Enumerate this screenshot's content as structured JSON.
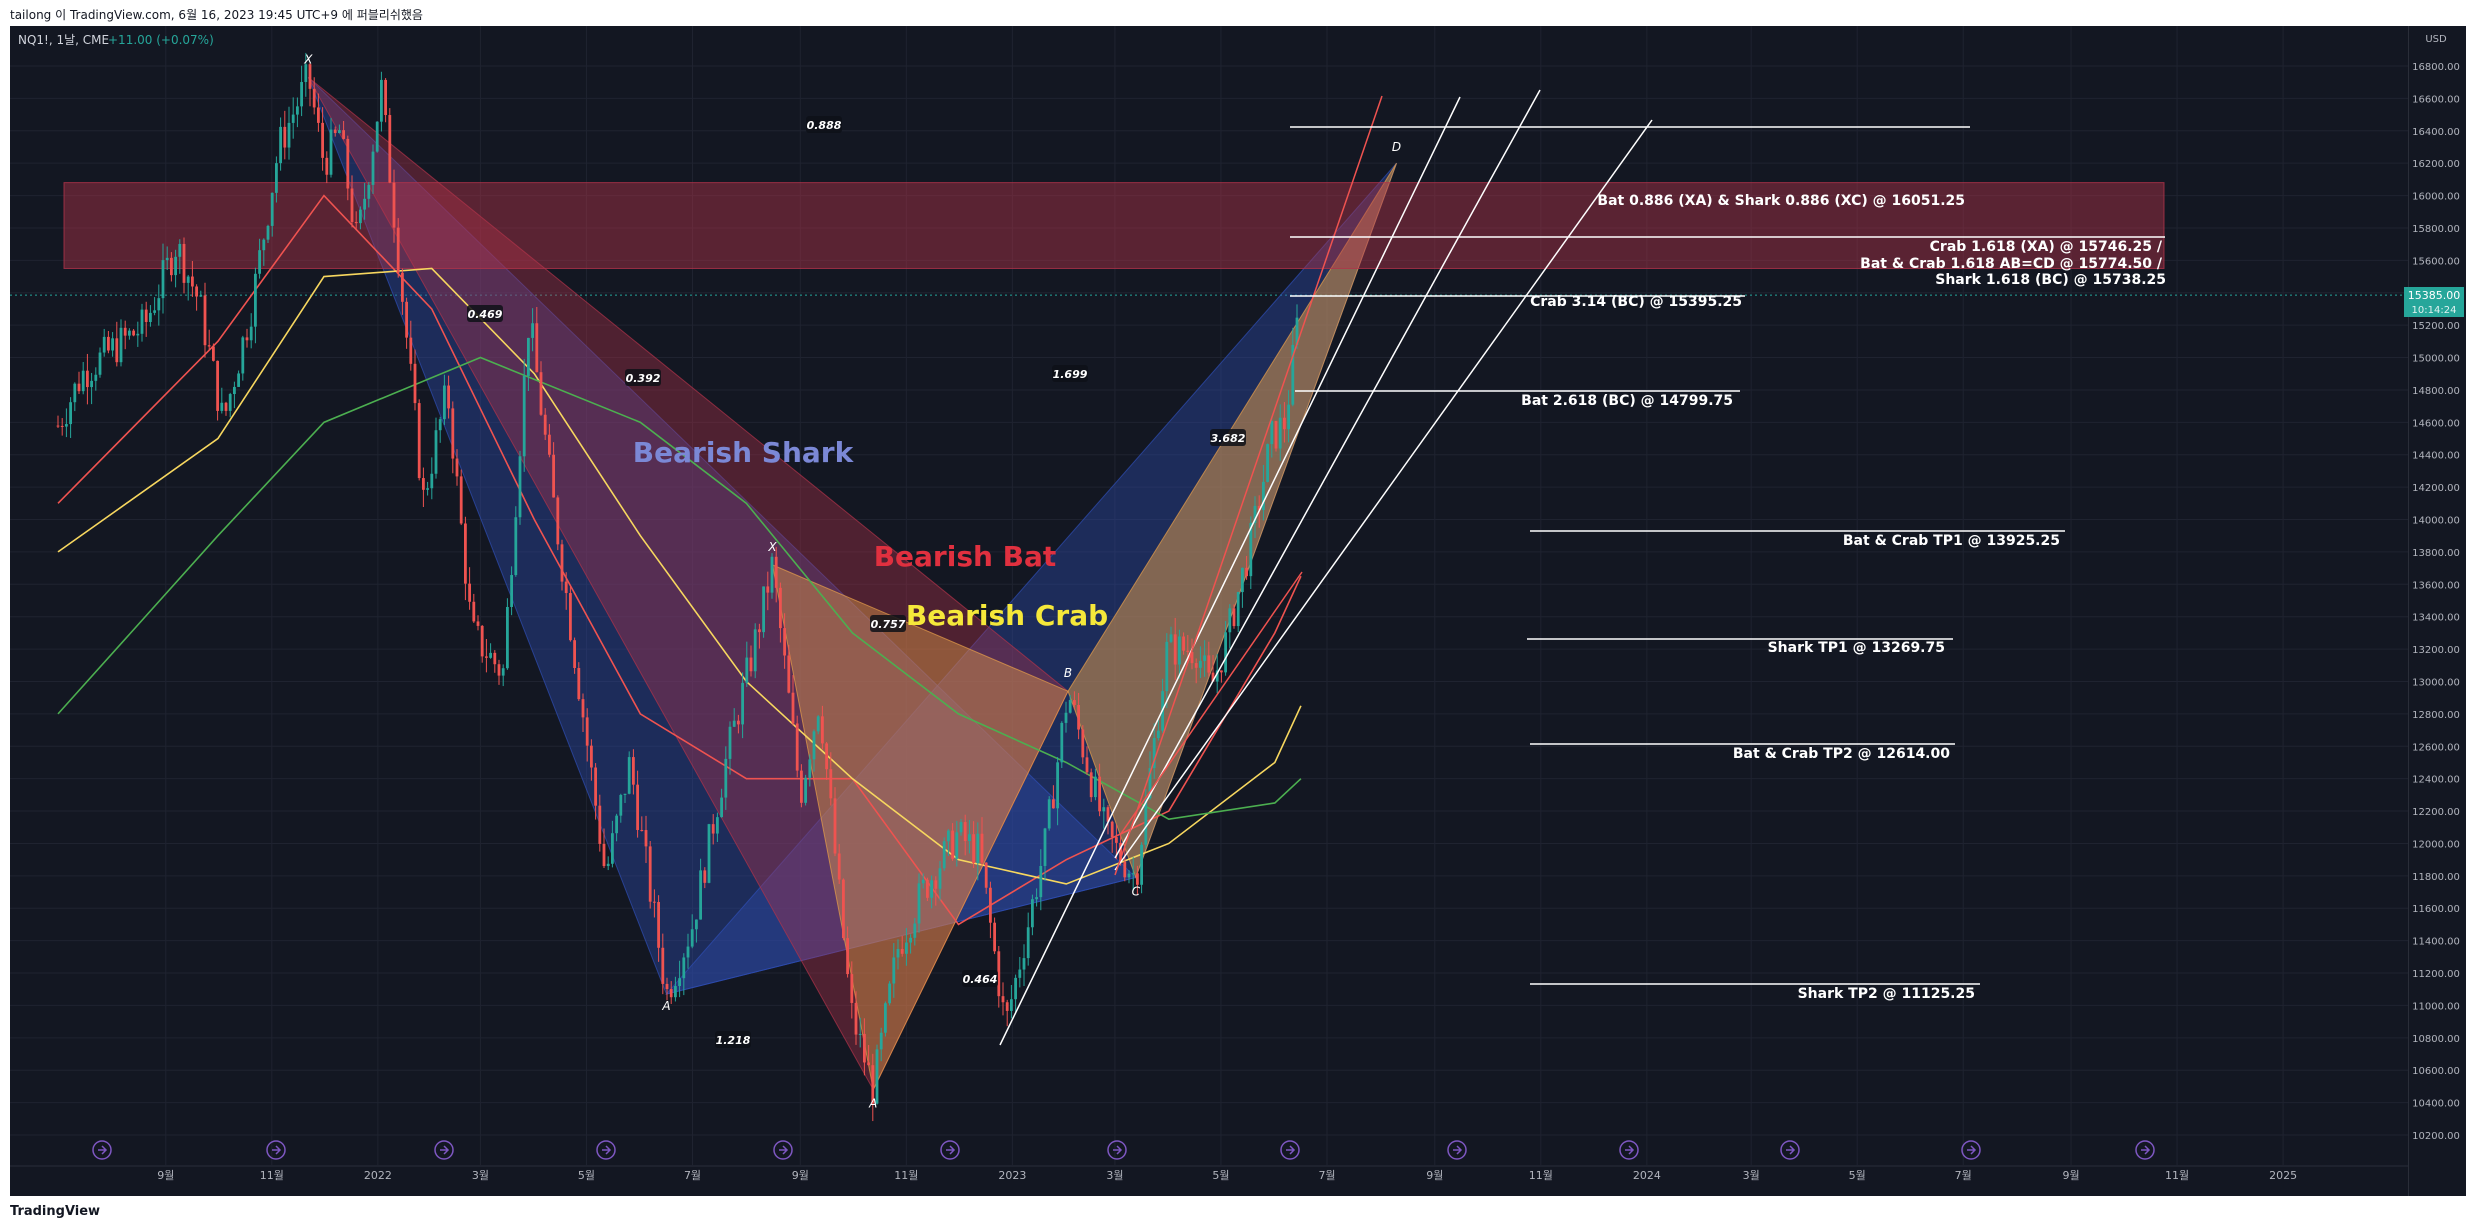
{
  "header": {
    "caption": "tailong 이 TradingView.com, 6월 16, 2023 19:45 UTC+9 에 퍼블리쉬했음"
  },
  "symbol": {
    "name": "NQ1!, 1날, CME",
    "change": "+11.00 (+0.07%)"
  },
  "price_axis": {
    "currency": "USD",
    "ticks": [
      "16800.00",
      "16600.00",
      "16400.00",
      "16200.00",
      "16000.00",
      "15800.00",
      "15600.00",
      "15400.00",
      "15200.00",
      "15000.00",
      "14800.00",
      "14600.00",
      "14400.00",
      "14200.00",
      "14000.00",
      "13800.00",
      "13600.00",
      "13400.00",
      "13200.00",
      "13000.00",
      "12800.00",
      "12600.00",
      "12400.00",
      "12200.00",
      "12000.00",
      "11800.00",
      "11600.00",
      "11400.00",
      "11200.00",
      "11000.00",
      "10800.00",
      "10600.00",
      "10400.00",
      "10200.00"
    ],
    "last_price": "15385.00",
    "countdown": "10:14:24"
  },
  "time_axis": {
    "ticks": [
      "9월",
      "11월",
      "2022",
      "3월",
      "5월",
      "7월",
      "9월",
      "11월",
      "2023",
      "3월",
      "5월",
      "7월",
      "9월",
      "11월",
      "2024",
      "3월",
      "5월",
      "7월",
      "9월",
      "11월",
      "2025"
    ]
  },
  "footer": {
    "logo": "TradingView"
  },
  "colors": {
    "shark": "#2f4fb5",
    "bat": "#b2334a",
    "crab": "#e8a04a",
    "up": "#26a69a",
    "down": "#ef5350"
  },
  "chart_data": {
    "type": "candlestick",
    "symbol": "NQ1!",
    "interval": "1날",
    "yrange": [
      10100,
      16950
    ],
    "pivots": [
      {
        "label": "X",
        "date": "2021-11-22",
        "price": 16730
      },
      {
        "label": "A",
        "date": "2022-06-16",
        "price": 11070
      },
      {
        "label": "X",
        "date": "2022-08-16",
        "price": 13720
      },
      {
        "label": "A",
        "date": "2022-10-13",
        "price": 10480
      },
      {
        "label": "B",
        "date": "2023-02-02",
        "price": 12940
      },
      {
        "label": "C",
        "date": "2023-03-13",
        "price": 11790
      },
      {
        "label": "D",
        "date": "2023-08-10",
        "price": 16200
      }
    ],
    "pattern_labels": [
      "Bearish Shark",
      "Bearish Bat",
      "Bearish Crab"
    ],
    "ratios": [
      "0.888",
      "0.469",
      "0.392",
      "1.699",
      "3.682",
      "0.757",
      "0.464",
      "1.218"
    ],
    "levels": [
      {
        "label": "Bat 0.886 (XA) & Shark 0.886 (XC) @ 16051.25",
        "price": 16051.25
      },
      {
        "label": "Crab 1.618 (XA) @ 15746.25 /",
        "price": 15746.25
      },
      {
        "label": "Bat & Crab 1.618 AB=CD @ 15774.50 /",
        "price": 15774.5
      },
      {
        "label": "Shark 1.618 (BC) @ 15738.25",
        "price": 15738.25
      },
      {
        "label": "Crab 3.14 (BC) @ 15395.25",
        "price": 15395.25
      },
      {
        "label": "Bat 2.618 (BC) @ 14799.75",
        "price": 14799.75
      },
      {
        "label": "Bat & Crab TP1 @ 13925.25",
        "price": 13925.25
      },
      {
        "label": "Shark TP1 @ 13269.75",
        "price": 13269.75
      },
      {
        "label": "Bat & Crab TP2 @ 12614.00",
        "price": 12614
      },
      {
        "label": "Shark TP2 @ 11125.25",
        "price": 11125.25
      }
    ],
    "prz_zone": [
      15550,
      16080
    ],
    "last_price": 15385,
    "price_path": [
      [
        "2021-07-01",
        14580
      ],
      [
        "2021-07-15",
        14900
      ],
      [
        "2021-08-01",
        15050
      ],
      [
        "2021-08-20",
        15200
      ],
      [
        "2021-09-07",
        15700
      ],
      [
        "2021-09-20",
        15350
      ],
      [
        "2021-10-04",
        14600
      ],
      [
        "2021-10-20",
        15300
      ],
      [
        "2021-11-05",
        16300
      ],
      [
        "2021-11-22",
        16730
      ],
      [
        "2021-12-01",
        16200
      ],
      [
        "2021-12-10",
        16400
      ],
      [
        "2021-12-20",
        15700
      ],
      [
        "2022-01-03",
        16660
      ],
      [
        "2022-01-14",
        15500
      ],
      [
        "2022-01-27",
        14120
      ],
      [
        "2022-02-10",
        14800
      ],
      [
        "2022-02-24",
        13300
      ],
      [
        "2022-03-14",
        13050
      ],
      [
        "2022-03-29",
        15260
      ],
      [
        "2022-04-12",
        14100
      ],
      [
        "2022-04-29",
        12800
      ],
      [
        "2022-05-12",
        11800
      ],
      [
        "2022-05-26",
        12500
      ],
      [
        "2022-06-16",
        11070
      ],
      [
        "2022-07-01",
        11500
      ],
      [
        "2022-07-20",
        12500
      ],
      [
        "2022-08-05",
        13200
      ],
      [
        "2022-08-16",
        13720
      ],
      [
        "2022-09-01",
        12300
      ],
      [
        "2022-09-12",
        12900
      ],
      [
        "2022-09-30",
        10970
      ],
      [
        "2022-10-13",
        10480
      ],
      [
        "2022-10-27",
        11350
      ],
      [
        "2022-11-10",
        11700
      ],
      [
        "2022-11-30",
        12050
      ],
      [
        "2022-12-13",
        11950
      ],
      [
        "2022-12-28",
        10870
      ],
      [
        "2023-01-10",
        11500
      ],
      [
        "2023-01-20",
        12000
      ],
      [
        "2023-02-02",
        12940
      ],
      [
        "2023-02-24",
        12050
      ],
      [
        "2023-03-13",
        11790
      ],
      [
        "2023-03-31",
        13200
      ],
      [
        "2023-04-17",
        13200
      ],
      [
        "2023-04-25",
        12950
      ],
      [
        "2023-05-04",
        13250
      ],
      [
        "2023-05-19",
        13900
      ],
      [
        "2023-05-30",
        14500
      ],
      [
        "2023-06-07",
        14600
      ],
      [
        "2023-06-16",
        15385
      ]
    ],
    "moving_averages": [
      {
        "color": "#ef5350",
        "points": [
          [
            "2021-07-01",
            14100
          ],
          [
            "2021-10-01",
            15100
          ],
          [
            "2021-12-01",
            16000
          ],
          [
            "2022-02-01",
            15300
          ],
          [
            "2022-04-01",
            14000
          ],
          [
            "2022-06-01",
            12800
          ],
          [
            "2022-08-01",
            12400
          ],
          [
            "2022-10-01",
            12400
          ],
          [
            "2022-12-01",
            11500
          ],
          [
            "2023-02-01",
            11900
          ],
          [
            "2023-04-01",
            12200
          ],
          [
            "2023-06-01",
            13300
          ],
          [
            "2023-06-16",
            13650
          ]
        ]
      },
      {
        "color": "#f7d75f",
        "points": [
          [
            "2021-07-01",
            13800
          ],
          [
            "2021-10-01",
            14500
          ],
          [
            "2021-12-01",
            15500
          ],
          [
            "2022-02-01",
            15550
          ],
          [
            "2022-04-01",
            14900
          ],
          [
            "2022-06-01",
            13900
          ],
          [
            "2022-08-01",
            13000
          ],
          [
            "2022-10-01",
            12400
          ],
          [
            "2022-12-01",
            11900
          ],
          [
            "2023-02-01",
            11750
          ],
          [
            "2023-04-01",
            12000
          ],
          [
            "2023-06-01",
            12500
          ],
          [
            "2023-06-16",
            12850
          ]
        ]
      },
      {
        "color": "#4caf50",
        "points": [
          [
            "2021-07-01",
            12800
          ],
          [
            "2021-10-01",
            13900
          ],
          [
            "2021-12-01",
            14600
          ],
          [
            "2022-03-01",
            15000
          ],
          [
            "2022-06-01",
            14600
          ],
          [
            "2022-08-01",
            14100
          ],
          [
            "2022-10-01",
            13300
          ],
          [
            "2022-12-01",
            12800
          ],
          [
            "2023-02-01",
            12500
          ],
          [
            "2023-04-01",
            12150
          ],
          [
            "2023-06-01",
            12250
          ],
          [
            "2023-06-16",
            12400
          ]
        ]
      }
    ]
  }
}
